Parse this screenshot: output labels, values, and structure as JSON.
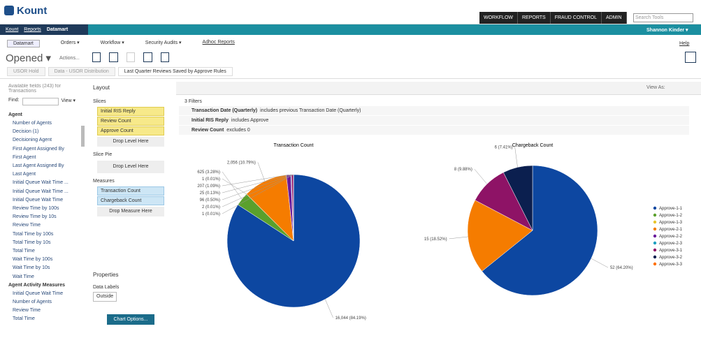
{
  "header": {
    "logo": "Kount",
    "nav": [
      "WORKFLOW",
      "REPORTS",
      "FRAUD CONTROL",
      "ADMIN"
    ],
    "search": "Search Tools"
  },
  "breadcrumb": [
    "Kount",
    "Reports",
    "Datamart"
  ],
  "user": "Shannon Kinder ▾",
  "tabs": [
    "Datamart",
    "Orders ▾",
    "Workflow ▾",
    "Security Audits ▾",
    "Adhoc Reports"
  ],
  "help": "Help",
  "toolbar": {
    "title": "Opened ▾",
    "actions": "Actions..."
  },
  "doc_tabs": [
    "USOR Hold",
    "Data - USOR Distribution",
    "Last Quarter Reviews Saved by Approve Rules"
  ],
  "fields": {
    "heading": "Available fields (243) for Transactions",
    "find": "Find:",
    "view": "View ▾",
    "group": "Agent",
    "items": [
      "Number of Agents",
      "Decision (1)",
      "Decisioning Agent",
      "First Agent Assigned By",
      "First Agent",
      "Last Agent Assigned By",
      "Last Agent",
      "Initial Queue Wait Time ...",
      "Initial Queue Wait Time ...",
      "Initial Queue Wait Time",
      "Review Time by 100s",
      "Review Time by 10s",
      "Review Time",
      "Total Time by 100s",
      "Total Time by 10s",
      "Total Time",
      "Wait Time by 100s",
      "Wait Time by 10s",
      "Wait Time"
    ],
    "group2": "Agent Activity Measures",
    "items2": [
      "Initial Queue Wait Time",
      "Number of Agents",
      "Review Time",
      "Total Time"
    ]
  },
  "layout": {
    "heading": "Layout",
    "slices": "Slices",
    "slice_items": [
      "Initial RIS Reply",
      "Review Count",
      "Approve Count"
    ],
    "drop_level": "Drop Level Here",
    "slice_pie": "Slice Pie",
    "drop_level2": "Drop Level Here",
    "measures": "Measures",
    "measure_items": [
      "Transaction Count",
      "Chargeback Count"
    ],
    "drop_measure": "Drop Measure Here",
    "properties": "Properties",
    "data_labels": "Data Labels",
    "outside": "Outside",
    "chart_options": "Chart Options..."
  },
  "view_as": "View As:",
  "filters": {
    "count": "3 Filters",
    "rows": [
      {
        "name": "Transaction Date (Quarterly)",
        "text": "includes previous Transaction Date (Quarterly)"
      },
      {
        "name": "Initial RIS Reply",
        "text": "includes Approve"
      },
      {
        "name": "Review Count",
        "text": "excludes 0"
      }
    ]
  },
  "legend": {
    "names": [
      "Approve-1-1",
      "Approve-1-2",
      "Approve-1-3",
      "Approve-2-1",
      "Approve-2-2",
      "Approve-2-3",
      "Approve-3-1",
      "Approve-3-2",
      "Approve-3-3"
    ],
    "colors": [
      "#0d47a1",
      "#5aa02c",
      "#e8c42a",
      "#f57c00",
      "#6a1b9a",
      "#1e9fc0",
      "#8e1366",
      "#0b1f4f",
      "#ff6f00"
    ]
  },
  "chart_data": [
    {
      "type": "pie",
      "title": "Transaction Count",
      "values": [
        16044,
        625,
        1,
        2056,
        207,
        25,
        96,
        2,
        1
      ],
      "value_labels": [
        "16,044 (84.19%)",
        "625 (3.28%)",
        "1 (0.01%)",
        "2,056 (10.79%)",
        "207 (1.09%)",
        "25 (0.13%)",
        "96 (0.50%)",
        "2 (0.01%)",
        "1 (0.01%)"
      ]
    },
    {
      "type": "pie",
      "title": "Chargeback Count",
      "values": [
        52,
        null,
        null,
        15,
        null,
        null,
        8,
        6,
        null
      ],
      "value_labels": [
        "52 (64.20%)",
        null,
        null,
        "15 (18.52%)",
        null,
        null,
        "8 (9.88%)",
        "6 (7.41%)",
        null
      ]
    }
  ]
}
